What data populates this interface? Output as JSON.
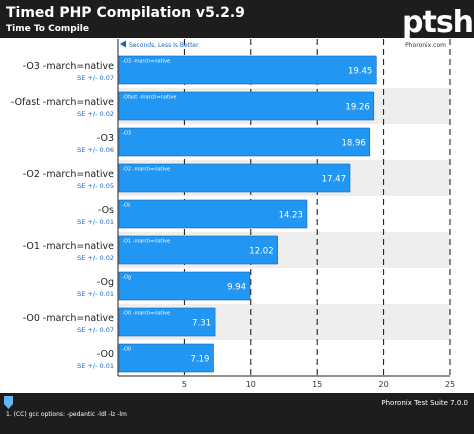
{
  "header": {
    "title": "Timed PHP Compilation v5.2.9",
    "subtitle": "Time To Compile",
    "logo_text": "ptsh"
  },
  "footer": {
    "note": "1. (CC) gcc options: -pedantic -ldl -lz -lm",
    "suite": "Phoronix Test Suite 7.0.0"
  },
  "colors": {
    "header_bg": "#1d1d1d",
    "bar": "#2196f3",
    "bar_edge": "#1565c0",
    "plot_bg": "#ffffff",
    "row_band": "#eeeeee",
    "label_blue": "#1565c0"
  },
  "chart_data": {
    "type": "bar",
    "orientation": "horizontal",
    "title": "Timed PHP Compilation v5.2.9",
    "subtitle": "Time To Compile",
    "direction_note": "Seconds, Less Is Better",
    "source": "Phoronix.com",
    "xlim": [
      0,
      25
    ],
    "xticks": [
      5,
      10,
      15,
      20,
      25
    ],
    "grid": true,
    "categories": [
      "-O3 -march=native",
      "-Ofast -march=native",
      "-O3",
      "-O2 -march=native",
      "-Os",
      "-O1 -march=native",
      "-Og",
      "-O0 -march=native",
      "-O0"
    ],
    "bar_labels": [
      "-O3 -march=native",
      "-Ofast -march=native",
      "-O3",
      "-O2 -march=native",
      "-Os",
      "-O1 -march=native",
      "-Og",
      "-O0 -march=native",
      "-O0"
    ],
    "values": [
      19.45,
      19.26,
      18.96,
      17.47,
      14.23,
      12.02,
      9.94,
      7.31,
      7.19
    ],
    "value_labels": [
      "19.45",
      "19.26",
      "18.96",
      "17.47",
      "14.23",
      "12.02",
      "9.94",
      "7.31",
      "7.19"
    ],
    "errors": [
      "SE +/- 0.07",
      "SE +/- 0.02",
      "SE +/- 0.06",
      "SE +/- 0.05",
      "SE +/- 0.01",
      "SE +/- 0.02",
      "SE +/- 0.01",
      "SE +/- 0.07",
      "SE +/- 0.01"
    ]
  }
}
